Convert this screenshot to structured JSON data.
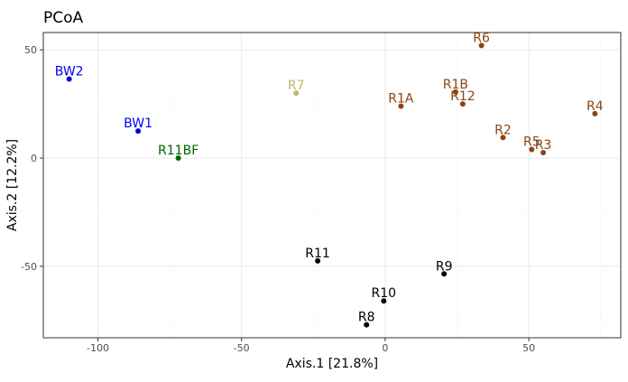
{
  "chart_data": {
    "type": "scatter",
    "title": "PCoA",
    "xlabel": "Axis.1   [21.8%]",
    "ylabel": "Axis.2   [12.2%]",
    "xlim": [
      -119,
      82
    ],
    "ylim": [
      -83,
      58
    ],
    "xticks": [
      -100,
      -50,
      0,
      50
    ],
    "yticks": [
      -50,
      0,
      50
    ],
    "xtick_labels": [
      "-100",
      "-50",
      "0",
      "50"
    ],
    "ytick_labels": [
      "-50",
      "0",
      "50"
    ],
    "grid": true,
    "colors": {
      "blue": "#0000ee",
      "green": "#006400",
      "khaki": "#bdb76b",
      "brown": "#8b4513",
      "black": "#000000",
      "grid_major": "#ebebeb",
      "grid_minor": "#f5f5f5",
      "panel_border": "#333333"
    },
    "points": [
      {
        "label": "BW2",
        "x": -110,
        "y": 36.5,
        "color": "blue"
      },
      {
        "label": "BW1",
        "x": -86,
        "y": 12.5,
        "color": "blue"
      },
      {
        "label": "R11BF",
        "x": -72,
        "y": 0,
        "color": "green"
      },
      {
        "label": "R7",
        "x": -31,
        "y": 30,
        "color": "khaki"
      },
      {
        "label": "R6",
        "x": 33.5,
        "y": 52,
        "color": "brown"
      },
      {
        "label": "R1B",
        "x": 24.5,
        "y": 30.5,
        "color": "brown"
      },
      {
        "label": "R12",
        "x": 27,
        "y": 25,
        "color": "brown"
      },
      {
        "label": "R1A",
        "x": 5.5,
        "y": 24,
        "color": "brown"
      },
      {
        "label": "R4",
        "x": 73,
        "y": 20.5,
        "color": "brown"
      },
      {
        "label": "R2",
        "x": 41,
        "y": 9.5,
        "color": "brown"
      },
      {
        "label": "R5",
        "x": 51,
        "y": 4,
        "color": "brown"
      },
      {
        "label": "R3",
        "x": 55,
        "y": 2.5,
        "color": "brown"
      },
      {
        "label": "R11",
        "x": -23.5,
        "y": -47.5,
        "color": "black"
      },
      {
        "label": "R9",
        "x": 20.5,
        "y": -53.5,
        "color": "black"
      },
      {
        "label": "R10",
        "x": -0.5,
        "y": -66,
        "color": "black"
      },
      {
        "label": "R8",
        "x": -6.5,
        "y": -77,
        "color": "black"
      }
    ]
  }
}
